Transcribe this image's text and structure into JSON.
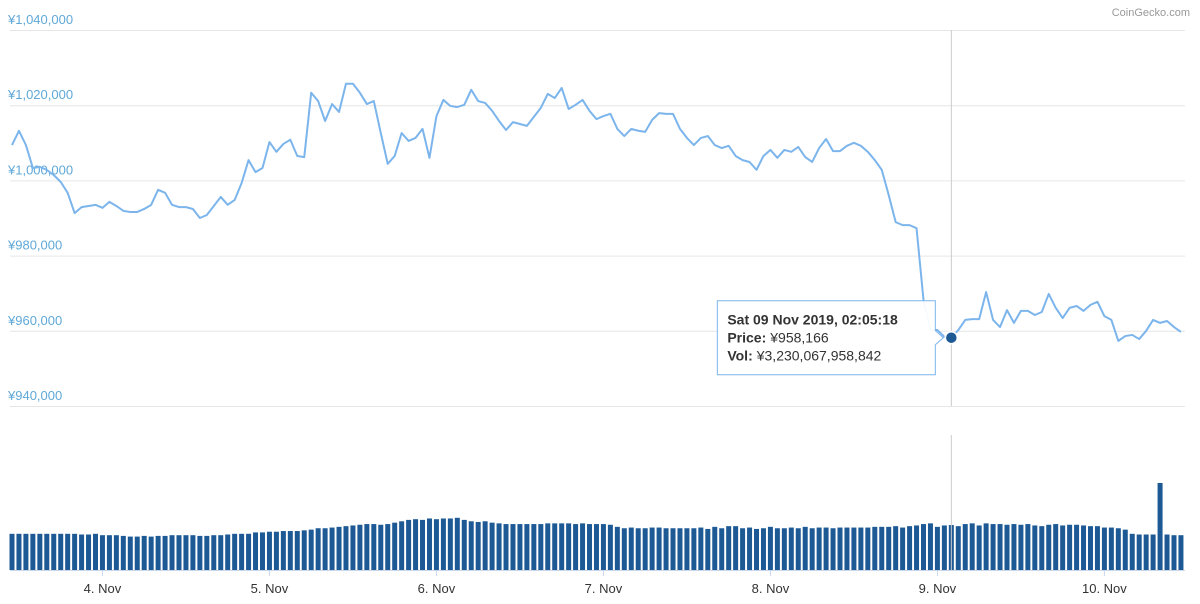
{
  "chart_data": {
    "type": "line",
    "watermark": "CoinGecko.com",
    "categories": [
      null,
      null,
      null,
      null,
      null,
      null,
      null,
      null,
      null,
      null,
      null,
      null,
      null,
      "4. Nov",
      null,
      null,
      null,
      null,
      null,
      null,
      null,
      null,
      null,
      null,
      null,
      null,
      null,
      null,
      null,
      null,
      null,
      null,
      null,
      null,
      null,
      null,
      null,
      "5. Nov",
      null,
      null,
      null,
      null,
      null,
      null,
      null,
      null,
      null,
      null,
      null,
      null,
      null,
      null,
      null,
      null,
      null,
      null,
      null,
      null,
      null,
      null,
      null,
      "6. Nov",
      null,
      null,
      null,
      null,
      null,
      null,
      null,
      null,
      null,
      null,
      null,
      null,
      null,
      null,
      null,
      null,
      null,
      null,
      null,
      null,
      null,
      null,
      null,
      "7. Nov",
      null,
      null,
      null,
      null,
      null,
      null,
      null,
      null,
      null,
      null,
      null,
      null,
      null,
      null,
      null,
      null,
      null,
      null,
      null,
      null,
      null,
      null,
      null,
      "8. Nov",
      null,
      null,
      null,
      null,
      null,
      null,
      null,
      null,
      null,
      null,
      null,
      null,
      null,
      null,
      null,
      null,
      null,
      null,
      null,
      null,
      null,
      null,
      null,
      "9. Nov",
      null,
      null,
      null,
      null,
      null,
      null,
      null,
      null,
      null,
      null,
      null,
      null,
      null,
      null,
      null,
      null,
      null,
      null,
      null,
      null,
      null,
      null,
      null,
      "10. Nov",
      null,
      null,
      null,
      null,
      null,
      null,
      null,
      null,
      null,
      null,
      null
    ],
    "ylim": [
      940000,
      1040000
    ],
    "yticks": [
      {
        "value": 940000,
        "label": "¥940,000"
      },
      {
        "value": 960000,
        "label": "¥960,000"
      },
      {
        "value": 980000,
        "label": "¥980,000"
      },
      {
        "value": 1000000,
        "label": "¥1,000,000"
      },
      {
        "value": 1020000,
        "label": "¥1,020,000"
      },
      {
        "value": 1040000,
        "label": "¥1,040,000"
      }
    ],
    "grid": true,
    "series": [
      {
        "type": "line",
        "color": "#7cb5ec",
        "values": [
          1009400,
          1013200,
          1009400,
          1003300,
          1003600,
          1002800,
          1001400,
          999600,
          996700,
          991300,
          992900,
          993200,
          993500,
          992700,
          994300,
          993200,
          991900,
          991600,
          991600,
          992400,
          993500,
          997500,
          996700,
          993500,
          992900,
          992900,
          992400,
          990000,
          990800,
          993200,
          995600,
          993500,
          994800,
          999300,
          1005400,
          1002200,
          1003300,
          1010200,
          1007600,
          1009700,
          1010800,
          1006500,
          1006200,
          1023300,
          1021100,
          1015800,
          1020300,
          1018200,
          1025700,
          1025700,
          1023300,
          1020300,
          1021100,
          1012600,
          1004400,
          1006500,
          1012600,
          1010500,
          1011300,
          1013700,
          1006000,
          1017100,
          1021400,
          1019800,
          1019500,
          1020100,
          1024100,
          1021100,
          1020600,
          1018500,
          1015800,
          1013400,
          1015500,
          1015000,
          1014500,
          1016900,
          1019300,
          1023000,
          1021900,
          1024600,
          1019000,
          1020100,
          1021400,
          1018500,
          1016300,
          1017100,
          1017700,
          1013700,
          1011800,
          1013700,
          1013200,
          1012900,
          1016100,
          1017900,
          1017700,
          1017700,
          1013700,
          1011300,
          1009400,
          1011300,
          1011800,
          1009400,
          1008600,
          1009200,
          1006500,
          1005400,
          1004900,
          1002800,
          1006500,
          1008100,
          1006000,
          1008100,
          1007600,
          1008900,
          1006200,
          1004900,
          1008600,
          1011000,
          1007800,
          1007800,
          1009200,
          1010000,
          1009200,
          1007600,
          1005400,
          1002800,
          996100,
          988900,
          988100,
          988100,
          987300,
          968200,
          960200,
          960200,
          958400,
          958166,
          960200,
          962900,
          963100,
          963100,
          970300,
          962900,
          961000,
          965500,
          962100,
          965300,
          965300,
          964200,
          965000,
          969800,
          966100,
          963400,
          966100,
          966600,
          965300,
          966900,
          967700,
          963900,
          962900,
          957300,
          958600,
          958900,
          957800,
          960000,
          962900,
          962100,
          962600,
          961000,
          959700
        ]
      },
      {
        "type": "bar",
        "color": "#1d5a95",
        "values": [
          2600000000000.0,
          2600000000000.0,
          2600000000000.0,
          2600000000000.0,
          2600000000000.0,
          2600000000000.0,
          2600000000000.0,
          2600000000000.0,
          2600000000000.0,
          2600000000000.0,
          2550000000000.0,
          2550000000000.0,
          2600000000000.0,
          2500000000000.0,
          2500000000000.0,
          2500000000000.0,
          2450000000000.0,
          2400000000000.0,
          2400000000000.0,
          2450000000000.0,
          2400000000000.0,
          2450000000000.0,
          2450000000000.0,
          2500000000000.0,
          2500000000000.0,
          2500000000000.0,
          2500000000000.0,
          2450000000000.0,
          2450000000000.0,
          2500000000000.0,
          2500000000000.0,
          2550000000000.0,
          2600000000000.0,
          2600000000000.0,
          2600000000000.0,
          2700000000000.0,
          2700000000000.0,
          2750000000000.0,
          2750000000000.0,
          2800000000000.0,
          2800000000000.0,
          2800000000000.0,
          2850000000000.0,
          2900000000000.0,
          3000000000000.0,
          3000000000000.0,
          3050000000000.0,
          3100000000000.0,
          3150000000000.0,
          3200000000000.0,
          3250000000000.0,
          3300000000000.0,
          3300000000000.0,
          3250000000000.0,
          3300000000000.0,
          3400000000000.0,
          3500000000000.0,
          3600000000000.0,
          3650000000000.0,
          3600000000000.0,
          3700000000000.0,
          3650000000000.0,
          3700000000000.0,
          3700000000000.0,
          3750000000000.0,
          3600000000000.0,
          3500000000000.0,
          3450000000000.0,
          3500000000000.0,
          3400000000000.0,
          3350000000000.0,
          3300000000000.0,
          3300000000000.0,
          3300000000000.0,
          3300000000000.0,
          3300000000000.0,
          3300000000000.0,
          3350000000000.0,
          3350000000000.0,
          3350000000000.0,
          3350000000000.0,
          3300000000000.0,
          3350000000000.0,
          3300000000000.0,
          3300000000000.0,
          3300000000000.0,
          3250000000000.0,
          3100000000000.0,
          3000000000000.0,
          3050000000000.0,
          3000000000000.0,
          3000000000000.0,
          3050000000000.0,
          3050000000000.0,
          3000000000000.0,
          3000000000000.0,
          3000000000000.0,
          3000000000000.0,
          3000000000000.0,
          3050000000000.0,
          2950000000000.0,
          3100000000000.0,
          3000000000000.0,
          3150000000000.0,
          3150000000000.0,
          3000000000000.0,
          3050000000000.0,
          2950000000000.0,
          3000000000000.0,
          3100000000000.0,
          3000000000000.0,
          3000000000000.0,
          3050000000000.0,
          3000000000000.0,
          3100000000000.0,
          3000000000000.0,
          3050000000000.0,
          3050000000000.0,
          3000000000000.0,
          3050000000000.0,
          3050000000000.0,
          3050000000000.0,
          3050000000000.0,
          3050000000000.0,
          3100000000000.0,
          3100000000000.0,
          3100000000000.0,
          3150000000000.0,
          3050000000000.0,
          3150000000000.0,
          3200000000000.0,
          3300000000000.0,
          3350000000000.0,
          3100000000000.0,
          3200000000000.0,
          3230067958842,
          3150000000000.0,
          3300000000000.0,
          3350000000000.0,
          3200000000000.0,
          3350000000000.0,
          3300000000000.0,
          3300000000000.0,
          3250000000000.0,
          3300000000000.0,
          3250000000000.0,
          3300000000000.0,
          3200000000000.0,
          3150000000000.0,
          3250000000000.0,
          3300000000000.0,
          3200000000000.0,
          3250000000000.0,
          3250000000000.0,
          3200000000000.0,
          3150000000000.0,
          3150000000000.0,
          3050000000000.0,
          3050000000000.0,
          3000000000000.0,
          2900000000000.0,
          2600000000000.0,
          2550000000000.0,
          2550000000000.0,
          2550000000000.0,
          6250000000000.0,
          2550000000000.0,
          2500000000000.0,
          2500000000000.0
        ]
      }
    ],
    "tooltip": {
      "title": "Sat 09 Nov 2019, 02:05:18",
      "lines": [
        {
          "label": "Price:",
          "value": "¥958,166"
        },
        {
          "label": "Vol:",
          "value": "¥3,230,067,958,842"
        }
      ]
    }
  }
}
